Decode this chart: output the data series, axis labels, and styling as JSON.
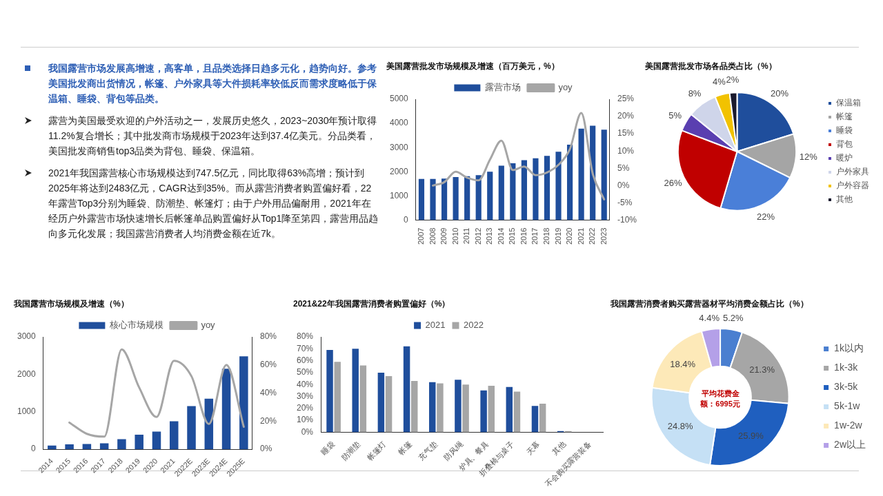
{
  "chart_data": [
    {
      "type": "other",
      "title": "我国露营市场发展高增速，高客单，且品类选择日趋多元化，趋势向好。参考美国批发商出货情况，帐篷、户外家具等大件损耗率较低反而需求度略低于保温箱、睡袋、背包等品类。",
      "annotations": [
        "露营为美国最受欢迎的户外活动之一，发展历史悠久，2023~2030年预计取得11.2%复合增长；其中批发商市场规模于2023年达到37.4亿美元。分品类看，美国批发商销售top3品类为背包、睡袋、保温箱。",
        "2021年我国露营核心市场规模达到747.5亿元，同比取得63%高增；预计到2025年将达到2483亿元，CAGR达到35%。而从露营消费者购置偏好看，22年露营Top3分别为睡袋、防潮垫、帐篷灯；由于户外用品偏耐用，2021年在经历户外露营市场快速增长后帐篷单品购置偏好从Top1降至第四，露营用品趋向多元化发展；我国露营消费者人均消费金额在近7k。"
      ]
    },
    {
      "type": "bar",
      "title": "美国露营批发市场规模及增速（百万美元，%）",
      "categories": [
        "2007",
        "2008",
        "2009",
        "2010",
        "2011",
        "2012",
        "2013",
        "2014",
        "2015",
        "2016",
        "2017",
        "2018",
        "2019",
        "2020",
        "2021",
        "2022",
        "2023"
      ],
      "series": [
        {
          "name": "露营市场",
          "type": "bar",
          "color": "#1f4e9c",
          "values": [
            1700,
            1700,
            1720,
            1780,
            1820,
            1860,
            2000,
            2250,
            2350,
            2480,
            2560,
            2660,
            2830,
            3120,
            3780,
            3900,
            3740
          ]
        },
        {
          "name": "yoy",
          "type": "line",
          "axis": "y2",
          "color": "#a6a6a6",
          "values": [
            null,
            0,
            1,
            4,
            2.3,
            1.5,
            7.5,
            13,
            4.5,
            5.5,
            3,
            3.8,
            6,
            10.5,
            21,
            3.5,
            -4
          ]
        }
      ],
      "ylim": [
        0,
        5000
      ],
      "yticks": [
        0,
        1000,
        2000,
        3000,
        4000,
        5000
      ],
      "y2lim": [
        -10,
        25
      ],
      "y2ticks": [
        {
          "value": -10,
          "label": "-10%"
        },
        {
          "value": -5,
          "label": "-5%"
        },
        {
          "value": 0,
          "label": "0%"
        },
        {
          "value": 5,
          "label": "5%"
        },
        {
          "value": 10,
          "label": "10%"
        },
        {
          "value": 15,
          "label": "15%"
        },
        {
          "value": 20,
          "label": "20%"
        },
        {
          "value": 25,
          "label": "25%"
        }
      ],
      "legend": "top",
      "marker": "none"
    },
    {
      "type": "pie",
      "title": "美国露营批发市场各品类占比（%）",
      "categories": [
        "保温箱",
        "帐篷",
        "睡袋",
        "背包",
        "暖炉",
        "户外家具",
        "户外容器",
        "其他"
      ],
      "values": [
        20,
        12,
        22,
        26,
        5,
        8,
        4,
        2
      ],
      "colors": [
        "#1f4e9c",
        "#a5a5a5",
        "#4a7fd8",
        "#c00000",
        "#5a3fb0",
        "#cfd5ea",
        "#f2c200",
        "#1a1a2e"
      ],
      "value_labels": [
        "20%",
        "12%",
        "22%",
        "26%",
        "5%",
        "8%",
        "4%",
        "2%"
      ],
      "legend": "right"
    },
    {
      "type": "bar",
      "title": "我国露营市场规模及增速（%）",
      "categories": [
        "2014",
        "2015",
        "2016",
        "2017",
        "2018",
        "2019",
        "2020",
        "2021",
        "2022E",
        "2023E",
        "2024E",
        "2025E"
      ],
      "series": [
        {
          "name": "核心市场规模",
          "type": "bar",
          "color": "#1f4e9c",
          "values": [
            100,
            130,
            140,
            160,
            270,
            390,
            470,
            750,
            1150,
            1350,
            2150,
            2480
          ]
        },
        {
          "name": "yoy",
          "type": "line",
          "axis": "y2",
          "color": "#a6a6a6",
          "values": [
            null,
            19,
            11,
            9,
            71,
            44,
            23,
            63,
            52,
            18,
            60,
            16
          ]
        }
      ],
      "ylim": [
        0,
        3000
      ],
      "yticks": [
        0,
        1000,
        2000,
        3000
      ],
      "y2lim": [
        0,
        80
      ],
      "y2ticks": [
        {
          "value": 0,
          "label": "0%"
        },
        {
          "value": 20,
          "label": "20%"
        },
        {
          "value": 40,
          "label": "40%"
        },
        {
          "value": 60,
          "label": "60%"
        },
        {
          "value": 80,
          "label": "80%"
        }
      ],
      "legend": "top",
      "marker": "none"
    },
    {
      "type": "bar",
      "title": "2021&22年我国露营消费者购置偏好（%）",
      "categories": [
        "睡袋",
        "防潮垫",
        "帐篷灯",
        "帐篷",
        "充气垫",
        "防风绳",
        "炉具、餐具",
        "折叠椅与桌子",
        "天幕",
        "其他",
        "不会购买露营装备"
      ],
      "series": [
        {
          "name": "2021",
          "color": "#1f4e9c",
          "values": [
            69,
            70,
            50,
            72,
            42,
            44,
            35,
            38,
            22,
            1,
            0
          ]
        },
        {
          "name": "2022",
          "color": "#a6a6a6",
          "values": [
            59,
            56,
            47,
            43,
            41,
            40,
            39,
            34,
            24,
            1,
            0
          ]
        }
      ],
      "ylim": [
        0,
        80
      ],
      "yticks": [
        {
          "value": 0,
          "label": "0%"
        },
        {
          "value": 10,
          "label": "10%"
        },
        {
          "value": 20,
          "label": "20%"
        },
        {
          "value": 30,
          "label": "30%"
        },
        {
          "value": 40,
          "label": "40%"
        },
        {
          "value": 50,
          "label": "50%"
        },
        {
          "value": 60,
          "label": "60%"
        },
        {
          "value": 70,
          "label": "70%"
        },
        {
          "value": 80,
          "label": "80%"
        }
      ],
      "legend": "top"
    },
    {
      "type": "donut",
      "title": "我国露营消费者购买露营器材平均消费金额占比（%）",
      "categories": [
        "1k以内",
        "1k-3k",
        "3k-5k",
        "5k-1w",
        "1w-2w",
        "2w以上"
      ],
      "values": [
        5.2,
        21.3,
        25.9,
        24.8,
        18.4,
        4.4
      ],
      "colors": [
        "#4a7fd0",
        "#a6a6a6",
        "#1f5fbf",
        "#c5e0f5",
        "#fde9b8",
        "#b4a0e8"
      ],
      "value_labels": [
        "5.2%",
        "21.3%",
        "25.9%",
        "24.8%",
        "18.4%",
        "4.4%"
      ],
      "legend": "right",
      "annotations": [
        "平均花费金额：6995元"
      ]
    }
  ]
}
